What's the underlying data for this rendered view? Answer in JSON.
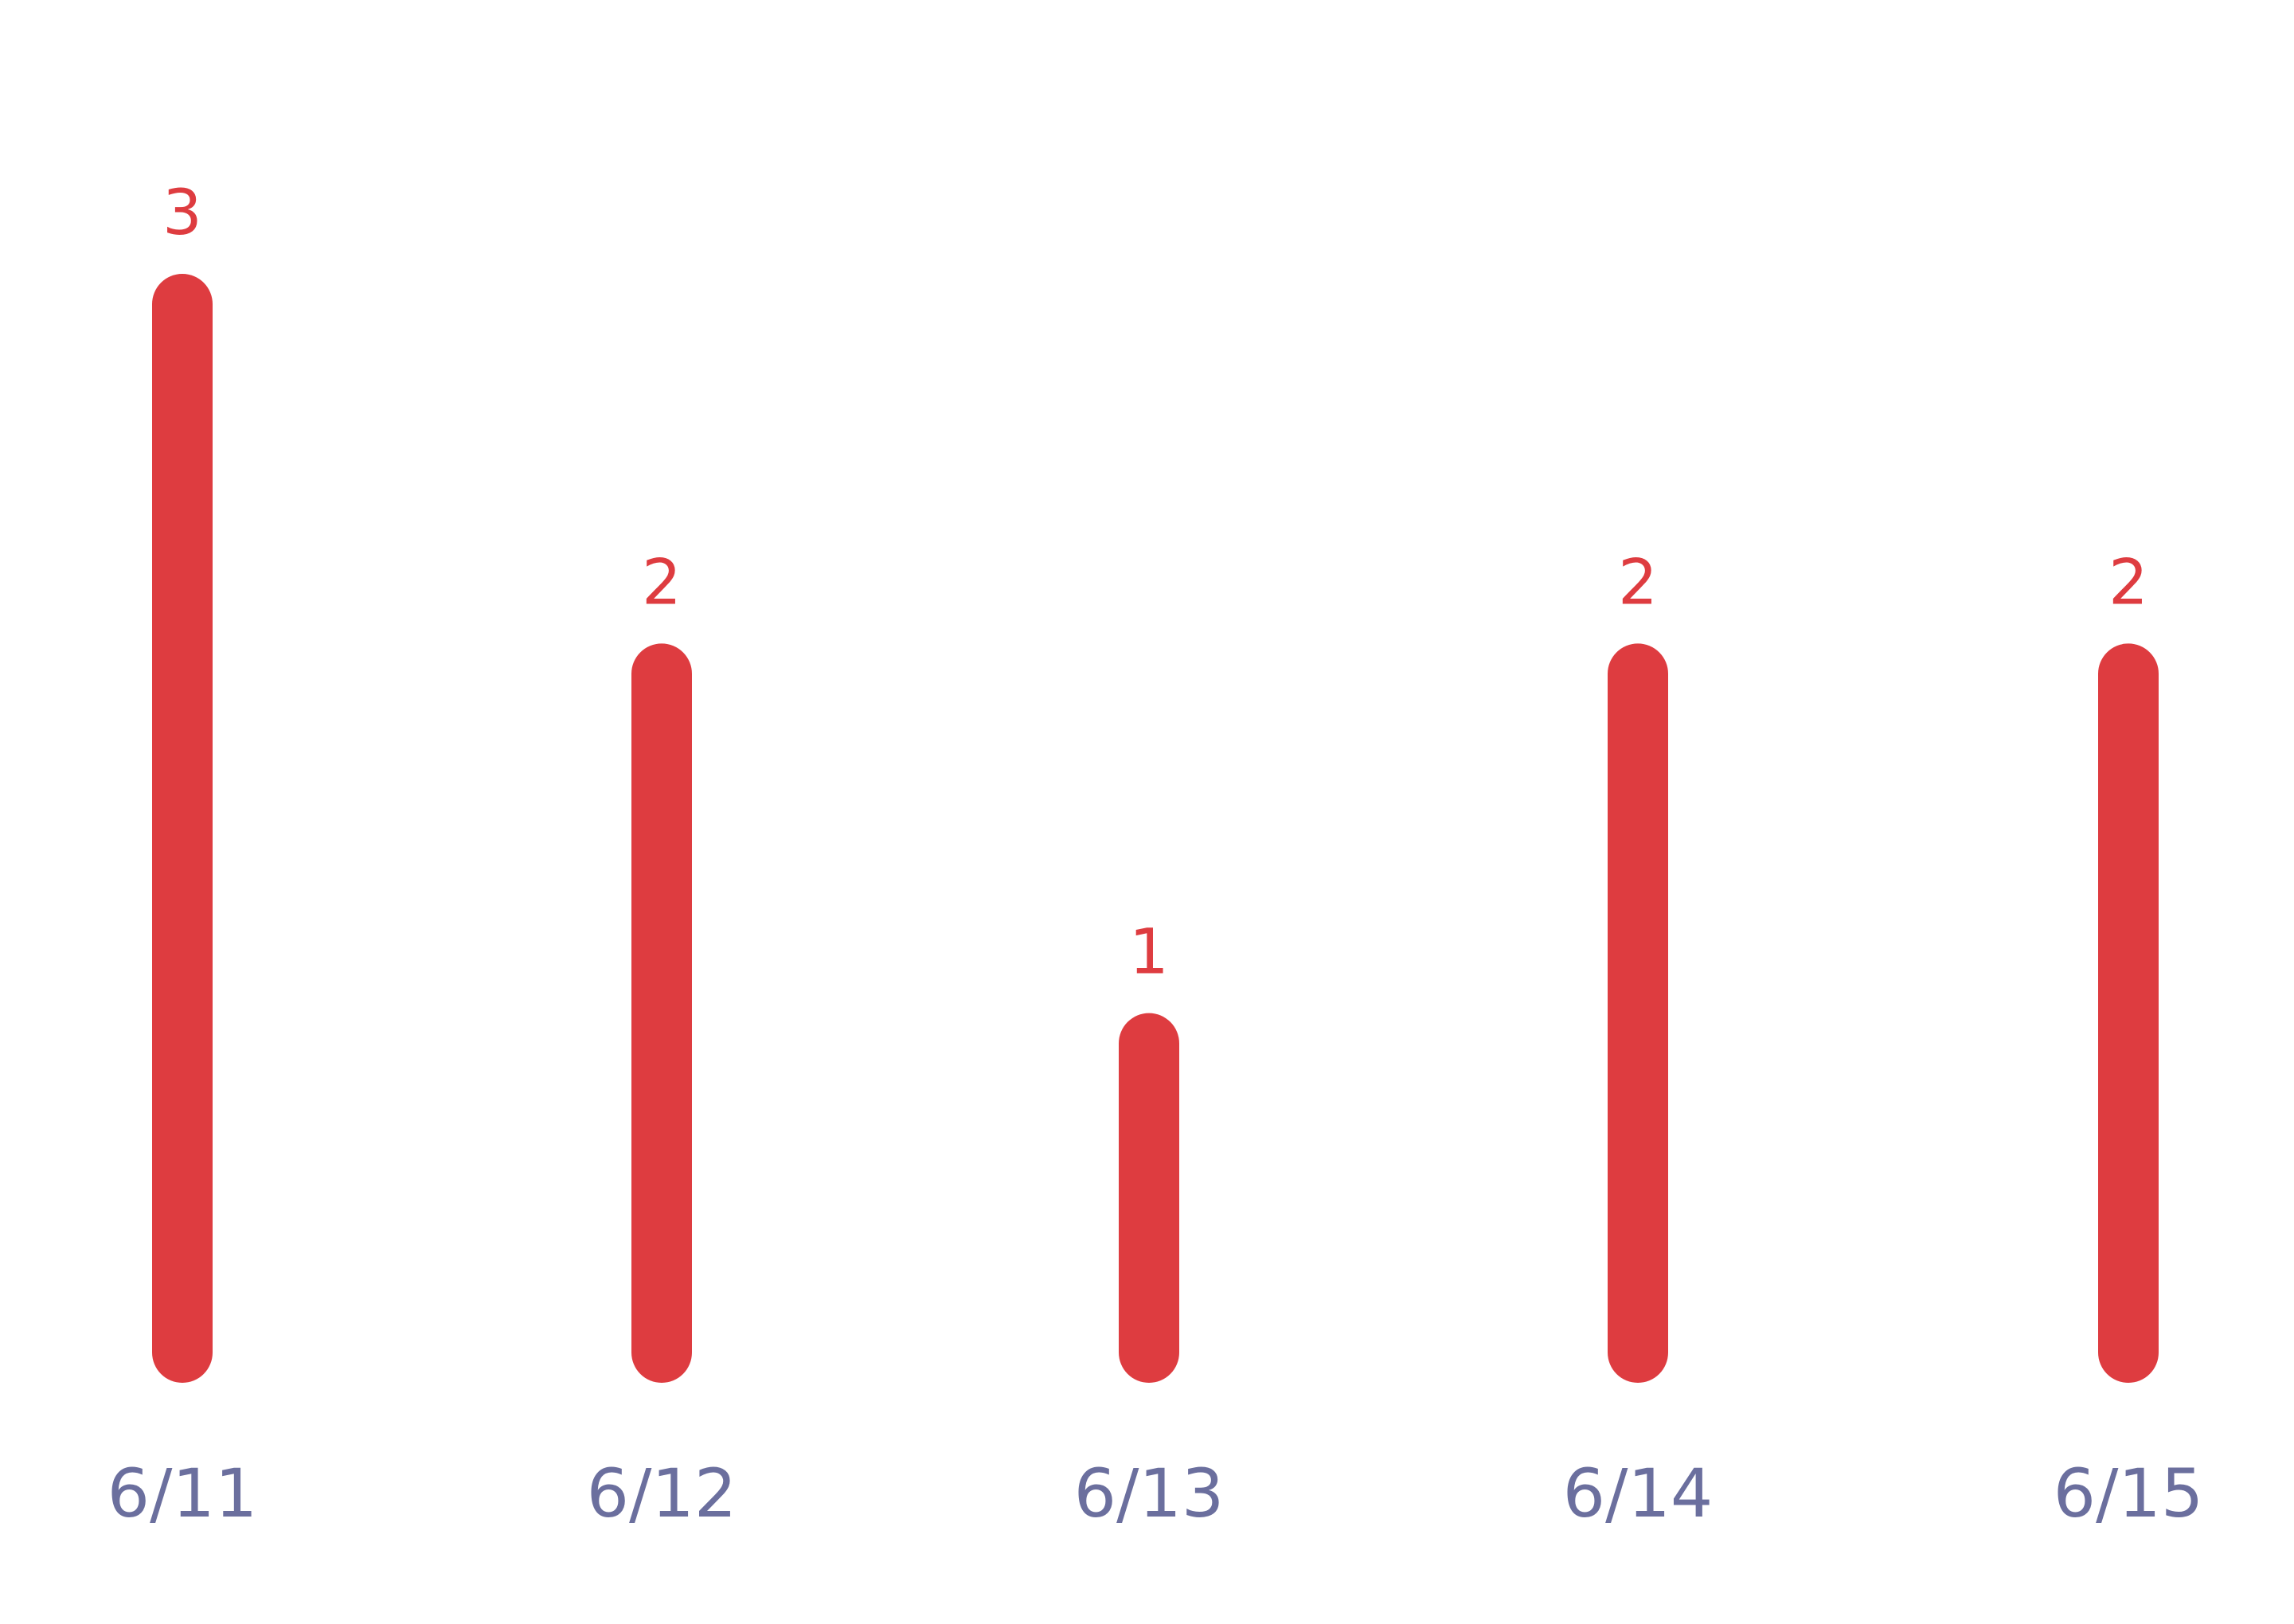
{
  "chart_data": {
    "type": "bar",
    "categories": [
      "6/11",
      "6/12",
      "6/13",
      "6/14",
      "6/15"
    ],
    "values": [
      3,
      2,
      1,
      2,
      2
    ],
    "ylim": [
      0,
      3
    ],
    "grid": false,
    "data_labels": true,
    "colors": {
      "bar": "#de3c40",
      "value_label": "#de3c40",
      "tick_label": "#6b6f9e"
    }
  }
}
